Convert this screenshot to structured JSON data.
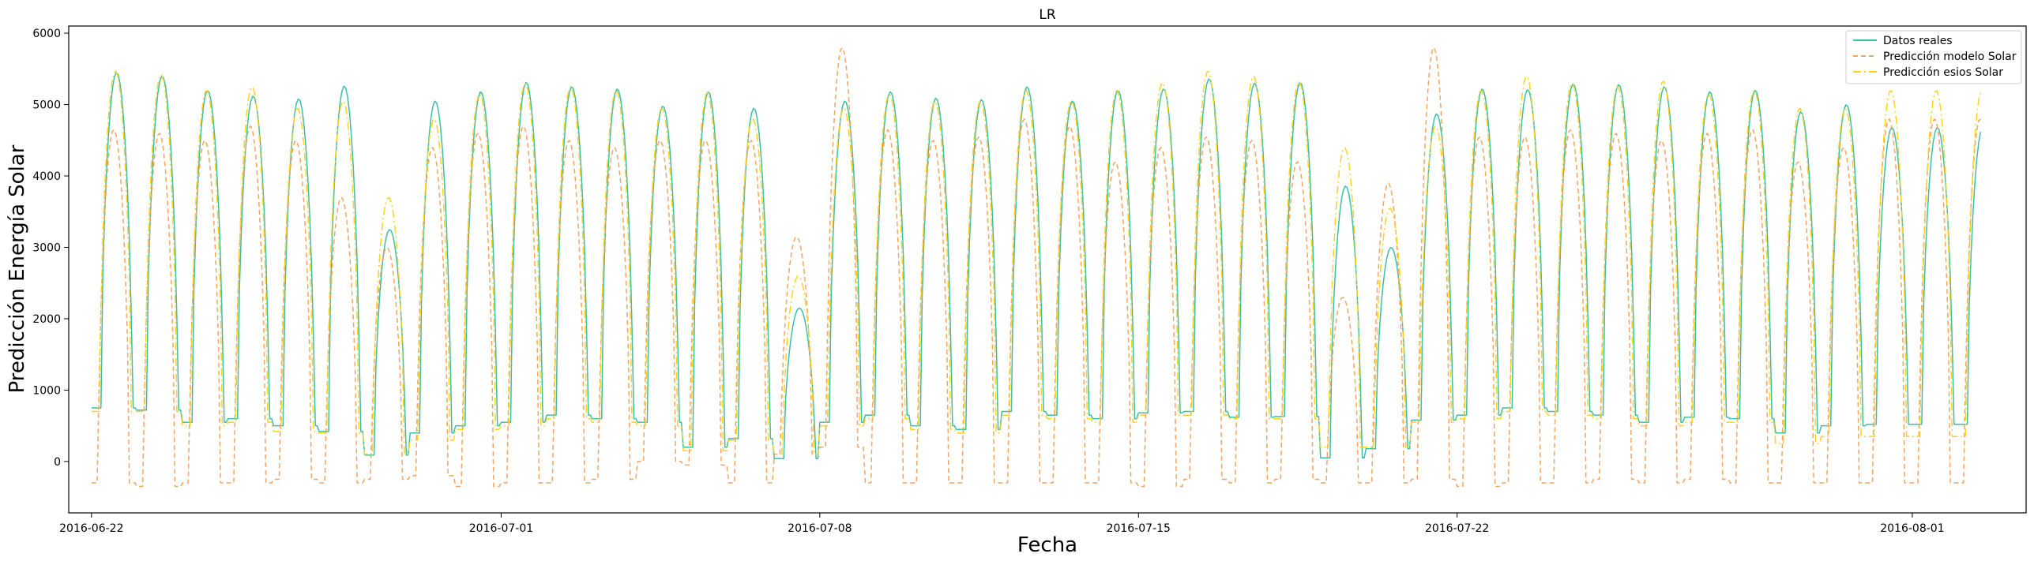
{
  "chart_data": {
    "type": "line",
    "title": "LR",
    "xlabel": "Fecha",
    "ylabel": "Predicción Energía Solar",
    "x_start": "2016-06-22 00:00",
    "x_end": "2016-08-02 12:00",
    "xlim": [
      "2016-06-21 12:00",
      "2016-08-03 12:00"
    ],
    "ylim": [
      -720,
      6100
    ],
    "x_ticks": [
      "2016-06-22",
      "2016-07-01",
      "2016-07-08",
      "2016-07-15",
      "2016-07-22",
      "2016-08-01"
    ],
    "y_ticks": [
      0,
      1000,
      2000,
      3000,
      4000,
      5000,
      6000
    ],
    "grid": false,
    "legend_position": "top-right",
    "series": [
      {
        "name": "Datos reales",
        "color": "#3cbfa8",
        "style": "solid",
        "daily_peak": [
          5450,
          5400,
          5200,
          5120,
          5080,
          5260,
          3250,
          5050,
          5180,
          5310,
          5250,
          5220,
          4980,
          5180,
          4950,
          2150,
          5050,
          5180,
          5090,
          5070,
          5250,
          5050,
          5200,
          5220,
          5360,
          5300,
          5310,
          3860,
          3000,
          4870,
          5220,
          5210,
          5290,
          5280,
          5250,
          5180,
          5200,
          4900,
          5000,
          4680
        ],
        "daily_night": [
          750,
          720,
          550,
          600,
          500,
          420,
          90,
          400,
          500,
          550,
          650,
          600,
          550,
          200,
          320,
          40,
          550,
          650,
          500,
          450,
          700,
          650,
          600,
          680,
          700,
          620,
          630,
          50,
          180,
          580,
          650,
          750,
          700,
          650,
          550,
          620,
          600,
          400,
          500,
          520
        ]
      },
      {
        "name": "Predicción modelo Solar",
        "color": "#f4a460",
        "style": "dashed",
        "daily_peak": [
          4650,
          4600,
          4500,
          4700,
          4500,
          3700,
          3000,
          4400,
          4600,
          4700,
          4500,
          4400,
          4500,
          4500,
          4500,
          3150,
          5800,
          4650,
          4500,
          4550,
          4800,
          4700,
          4200,
          4400,
          4550,
          4500,
          4200,
          2300,
          3900,
          5800,
          4550,
          4550,
          4650,
          4600,
          4500,
          4600,
          4650,
          4200,
          4400,
          4800
        ],
        "daily_night": [
          -300,
          -350,
          -300,
          -300,
          -250,
          -300,
          -250,
          -200,
          -350,
          -300,
          -300,
          -250,
          0,
          -50,
          -300,
          100,
          200,
          -300,
          -300,
          -300,
          -300,
          -300,
          -300,
          -350,
          -250,
          -300,
          -250,
          -300,
          -300,
          -250,
          -350,
          -300,
          -300,
          -250,
          -300,
          -250,
          -300,
          -300,
          -300,
          -300
        ]
      },
      {
        "name": "Predicción esios Solar",
        "color": "#ffd21e",
        "style": "dashdot",
        "daily_peak": [
          5470,
          5420,
          5200,
          5250,
          4950,
          5050,
          3700,
          4800,
          5150,
          5300,
          5250,
          5200,
          4950,
          5170,
          4800,
          2600,
          4950,
          5150,
          5050,
          5050,
          5200,
          5050,
          5200,
          5310,
          5470,
          5400,
          5320,
          4400,
          3550,
          4700,
          5200,
          5400,
          5300,
          5250,
          5330,
          5150,
          5200,
          4950,
          4950,
          5200
        ],
        "daily_night": [
          700,
          700,
          500,
          550,
          420,
          400,
          100,
          300,
          450,
          500,
          600,
          550,
          500,
          150,
          300,
          100,
          500,
          600,
          450,
          400,
          650,
          600,
          550,
          650,
          650,
          600,
          600,
          200,
          200,
          550,
          600,
          700,
          650,
          600,
          500,
          550,
          550,
          250,
          350,
          350
        ]
      }
    ]
  }
}
